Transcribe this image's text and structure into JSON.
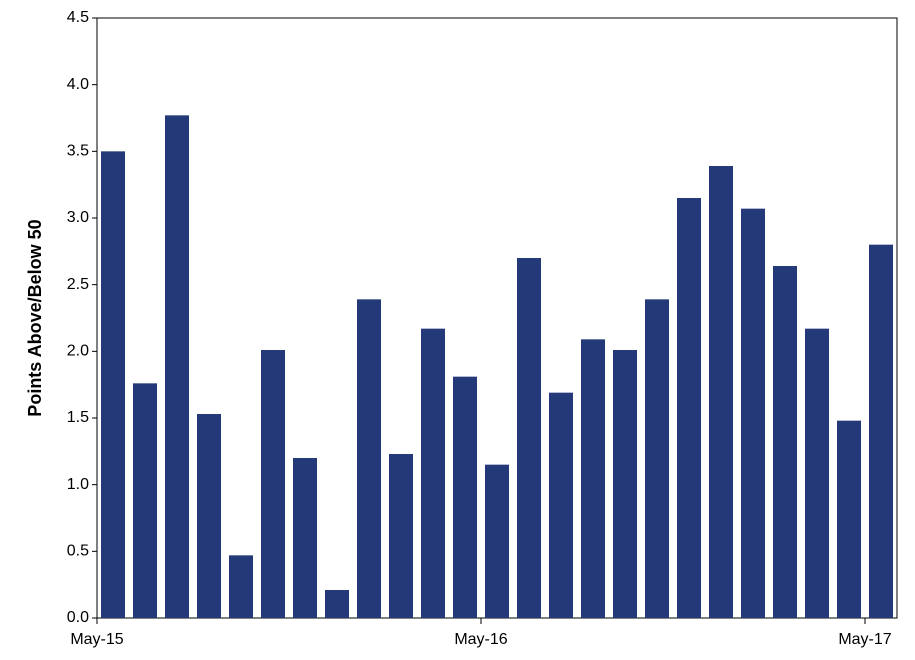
{
  "chart_data": {
    "type": "bar",
    "y_label": "Points Above/Below 50",
    "categories": [
      "May-15",
      null,
      null,
      null,
      null,
      null,
      null,
      null,
      null,
      null,
      null,
      null,
      "May-16",
      null,
      null,
      null,
      null,
      null,
      null,
      null,
      null,
      null,
      null,
      null,
      "May-17"
    ],
    "values": [
      3.5,
      1.76,
      3.77,
      1.53,
      0.47,
      2.01,
      1.2,
      0.21,
      2.39,
      1.23,
      2.17,
      1.81,
      1.15,
      2.7,
      1.69,
      2.09,
      2.01,
      2.39,
      3.15,
      3.39,
      3.07,
      2.64,
      2.17,
      1.48,
      2.8
    ],
    "color": "#243a78",
    "ylim": [
      0,
      4.5
    ],
    "yticks": [
      {
        "value": 0,
        "label": "0.0"
      },
      0.5,
      {
        "value": 1,
        "label": "1.0"
      },
      1.5,
      {
        "value": 2,
        "label": "2.0"
      },
      2.5,
      {
        "value": 3,
        "label": "3.0"
      },
      3.5,
      {
        "value": 4,
        "label": "4.0"
      },
      4.5
    ],
    "grid": false
  }
}
